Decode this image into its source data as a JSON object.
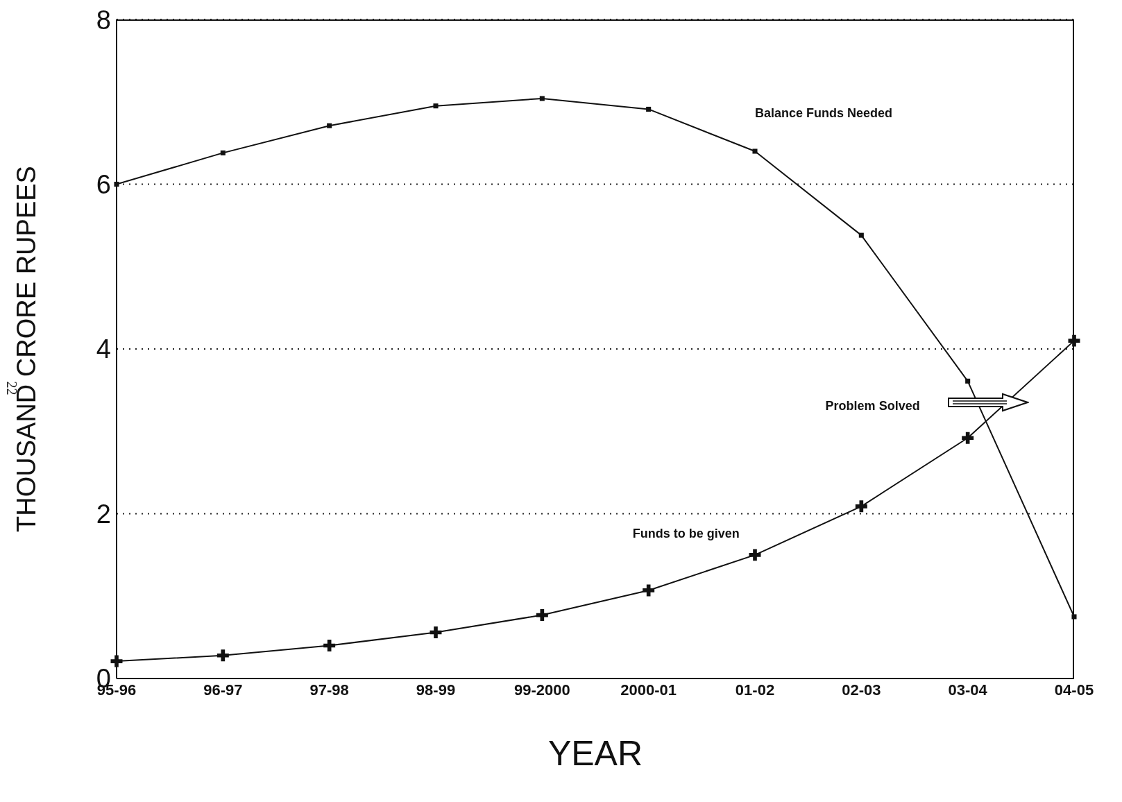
{
  "chart_data": {
    "type": "line",
    "xlabel": "YEAR",
    "ylabel": "THOUSAND CRORE RUPEES",
    "categories": [
      "95-96",
      "96-97",
      "97-98",
      "98-99",
      "99-2000",
      "2000-01",
      "01-02",
      "02-03",
      "03-04",
      "04-05"
    ],
    "series": [
      {
        "color": "#111111",
        "marker": "square",
        "values": [
          6.0,
          6.38,
          6.71,
          6.95,
          7.04,
          6.91,
          6.4,
          5.38,
          3.61,
          0.75
        ]
      },
      {
        "color": "#111111",
        "marker": "cross",
        "values": [
          0.21,
          0.28,
          0.4,
          0.56,
          0.77,
          1.07,
          1.5,
          2.09,
          2.92,
          4.1
        ]
      }
    ],
    "ylim": [
      0,
      8
    ],
    "yticks": [
      0,
      2,
      4,
      6,
      8
    ],
    "grid": "y",
    "legend": false,
    "line_style": "solid",
    "annotations": [
      "Balance Funds Needed",
      "Funds to be given",
      "Problem Solved",
      "22"
    ]
  }
}
